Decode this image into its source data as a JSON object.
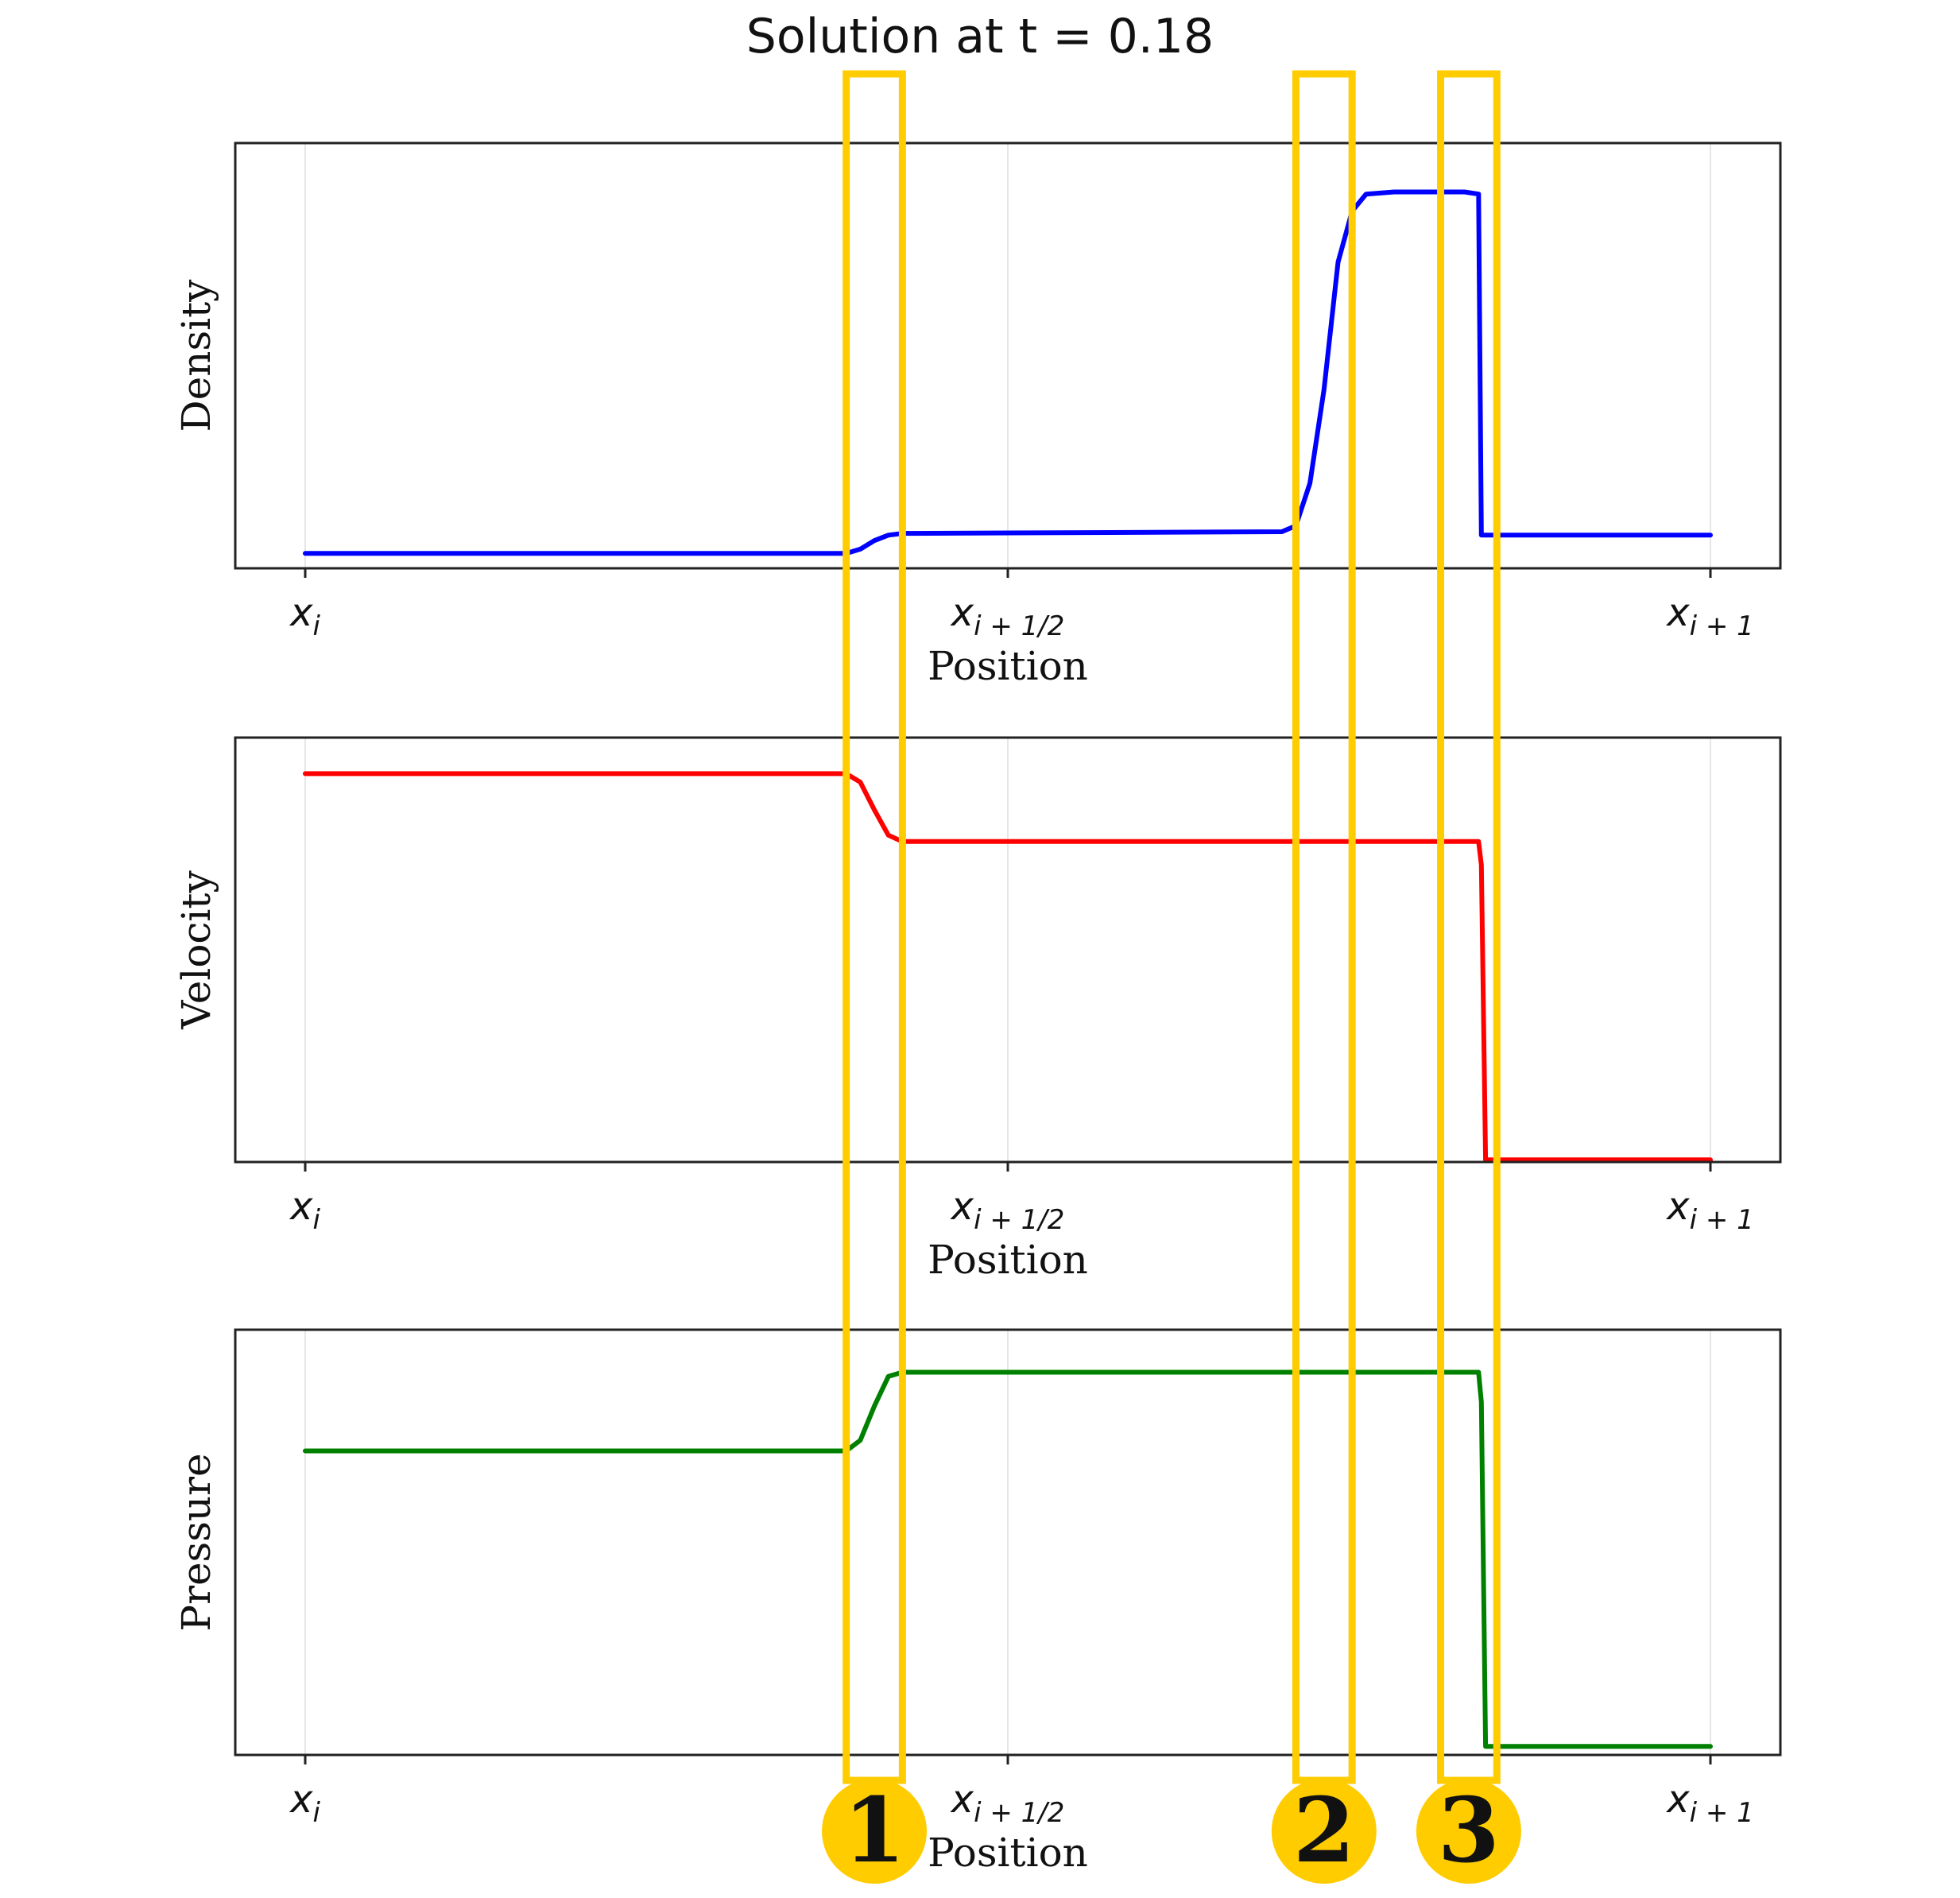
{
  "figure": {
    "title": "Solution at t = 0.18"
  },
  "chart_data": [
    {
      "type": "line",
      "ylabel": "Density",
      "xlabel": "Position",
      "xlim": [
        0,
        1
      ],
      "ylim": [
        0,
        1
      ],
      "grid": "vertical",
      "x_ticks": [
        0,
        0.5,
        1
      ],
      "x_tick_labels": [
        {
          "base": "x",
          "sub": "i"
        },
        {
          "base": "x",
          "sub": "i + 1/2"
        },
        {
          "base": "x",
          "sub": "i + 1"
        }
      ],
      "series": [
        {
          "color": "#0000ff",
          "x": [
            0,
            0.385,
            0.395,
            0.405,
            0.415,
            0.425,
            0.695,
            0.705,
            0.715,
            0.725,
            0.735,
            0.745,
            0.755,
            0.775,
            0.825,
            0.835,
            0.837,
            1.0
          ],
          "y": [
            0.035,
            0.035,
            0.045,
            0.065,
            0.078,
            0.082,
            0.086,
            0.1,
            0.2,
            0.42,
            0.72,
            0.84,
            0.88,
            0.885,
            0.885,
            0.88,
            0.078,
            0.078
          ]
        }
      ]
    },
    {
      "type": "line",
      "ylabel": "Velocity",
      "xlabel": "Position",
      "xlim": [
        0,
        1
      ],
      "ylim": [
        0,
        1
      ],
      "grid": "vertical",
      "x_ticks": [
        0,
        0.5,
        1
      ],
      "x_tick_labels": [
        {
          "base": "x",
          "sub": "i"
        },
        {
          "base": "x",
          "sub": "i + 1/2"
        },
        {
          "base": "x",
          "sub": "i + 1"
        }
      ],
      "series": [
        {
          "color": "#ff0000",
          "x": [
            0,
            0.385,
            0.395,
            0.405,
            0.415,
            0.425,
            0.835,
            0.837,
            0.84,
            1.0
          ],
          "y": [
            0.915,
            0.915,
            0.895,
            0.83,
            0.77,
            0.755,
            0.755,
            0.7,
            0.005,
            0.005
          ]
        }
      ]
    },
    {
      "type": "line",
      "ylabel": "Pressure",
      "xlabel": "Position",
      "xlim": [
        0,
        1
      ],
      "ylim": [
        0,
        1
      ],
      "grid": "vertical",
      "x_ticks": [
        0,
        0.5,
        1
      ],
      "x_tick_labels": [
        {
          "base": "x",
          "sub": "i"
        },
        {
          "base": "x",
          "sub": "i + 1/2"
        },
        {
          "base": "x",
          "sub": "i + 1"
        }
      ],
      "series": [
        {
          "color": "#008000",
          "x": [
            0,
            0.385,
            0.395,
            0.405,
            0.415,
            0.425,
            0.835,
            0.837,
            0.84,
            1.0
          ],
          "y": [
            0.715,
            0.715,
            0.74,
            0.82,
            0.89,
            0.9,
            0.9,
            0.83,
            0.02,
            0.02
          ]
        }
      ]
    }
  ],
  "annotations": {
    "color": "#ffcc00",
    "regions": [
      {
        "label": "1",
        "x_start": 0.385,
        "x_end": 0.425
      },
      {
        "label": "2",
        "x_start": 0.705,
        "x_end": 0.745
      },
      {
        "label": "3",
        "x_start": 0.808,
        "x_end": 0.848
      }
    ]
  }
}
